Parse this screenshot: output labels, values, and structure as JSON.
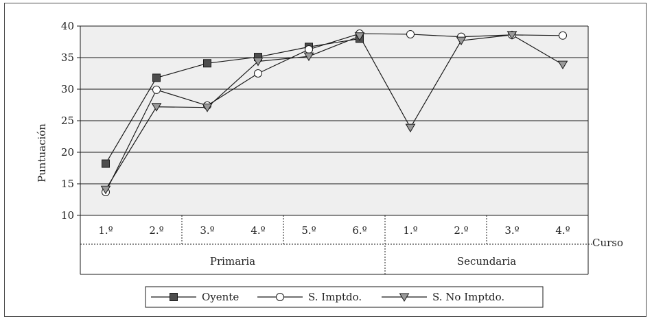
{
  "chart_data": {
    "type": "line",
    "title": "",
    "ylabel": "Puntuación",
    "xlabel": "Curso",
    "ylim": [
      10,
      40
    ],
    "yticks": [
      10,
      15,
      20,
      25,
      30,
      35,
      40
    ],
    "grid": true,
    "legend_position": "bottom-center",
    "groups": [
      {
        "label": "Primaria",
        "categories": [
          "1.º",
          "2.º",
          "3.º",
          "4.º",
          "5.º",
          "6.º"
        ]
      },
      {
        "label": "Secundaria",
        "categories": [
          "1.º",
          "2.º",
          "3.º",
          "4.º"
        ]
      }
    ],
    "categories": [
      "1.º",
      "2.º",
      "3.º",
      "4.º",
      "5.º",
      "6.º",
      "1.º",
      "2.º",
      "3.º",
      "4.º"
    ],
    "series": [
      {
        "name": "Oyente",
        "marker": "square",
        "color": "#4d4d4d",
        "values": [
          18.2,
          31.8,
          34.1,
          35.1,
          36.7,
          38.0,
          null,
          null,
          null,
          null
        ]
      },
      {
        "name": "S. Imptdo.",
        "marker": "circle",
        "color": "#ffffff",
        "values": [
          13.7,
          29.9,
          27.4,
          32.5,
          36.3,
          38.8,
          38.7,
          38.3,
          38.6,
          38.5
        ]
      },
      {
        "name": "S. No Imptdo.",
        "marker": "triangle",
        "color": "#9a9a9a",
        "values": [
          14.1,
          27.2,
          27.1,
          34.4,
          35.2,
          38.4,
          23.9,
          37.7,
          38.6,
          33.9
        ]
      }
    ]
  },
  "colors": {
    "plot_background": "#efefef",
    "frame": "#4a4a4a",
    "line": "#1a1a1a"
  }
}
